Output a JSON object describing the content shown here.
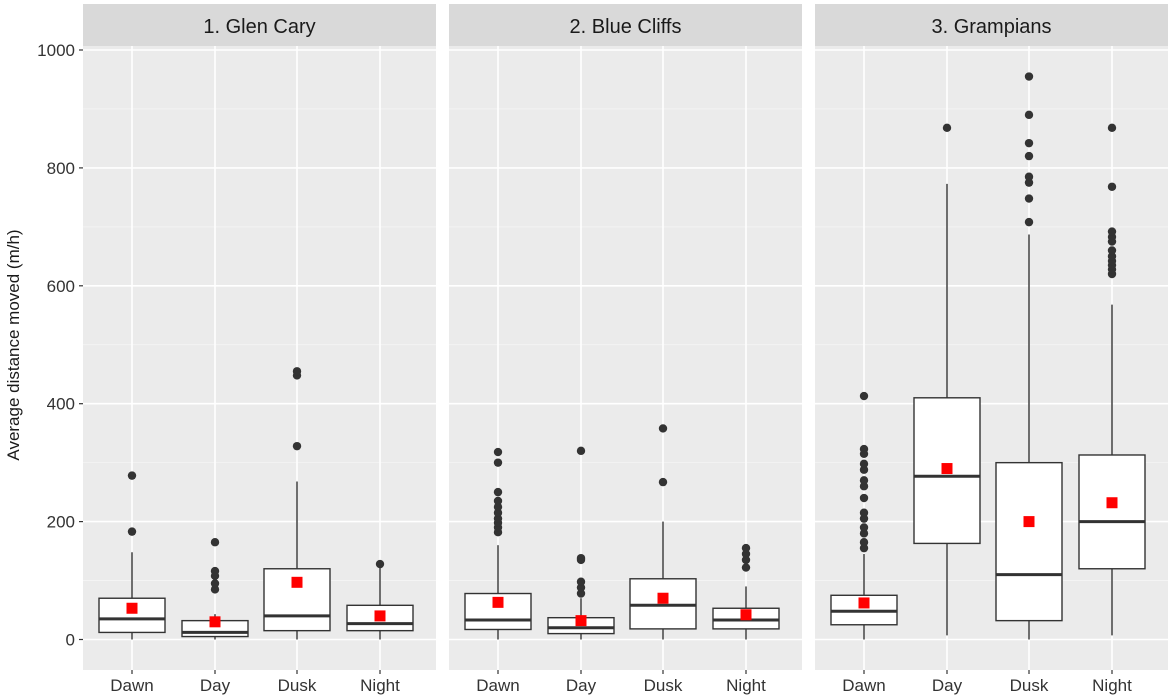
{
  "chart_data": {
    "type": "boxplot",
    "ylabel": "Average distance moved (m/h)",
    "xlabel": "",
    "ylim": [
      0,
      1000
    ],
    "yticks": [
      0,
      200,
      400,
      600,
      800,
      1000
    ],
    "categories": [
      "Dawn",
      "Day",
      "Dusk",
      "Night"
    ],
    "grid": true,
    "mean_marker_color": "#ff0000",
    "panel_background": "#ebebeb",
    "strip_background": "#d9d9d9",
    "panels": [
      {
        "label": "1. Glen Cary",
        "boxes": [
          {
            "category": "Dawn",
            "whisker_low": 0,
            "q1": 12,
            "median": 35,
            "q3": 70,
            "whisker_high": 148,
            "mean": 53,
            "outliers": [
              183,
              278
            ]
          },
          {
            "category": "Day",
            "whisker_low": 0,
            "q1": 5,
            "median": 12,
            "q3": 32,
            "whisker_high": 43,
            "mean": 30,
            "outliers": [
              85,
              95,
              108,
              116,
              165
            ]
          },
          {
            "category": "Dusk",
            "whisker_low": 0,
            "q1": 15,
            "median": 40,
            "q3": 120,
            "whisker_high": 268,
            "mean": 97,
            "outliers": [
              328,
              448,
              455
            ]
          },
          {
            "category": "Night",
            "whisker_low": 0,
            "q1": 15,
            "median": 27,
            "q3": 58,
            "whisker_high": 127,
            "mean": 40,
            "outliers": [
              128
            ]
          }
        ]
      },
      {
        "label": "2. Blue Cliffs",
        "boxes": [
          {
            "category": "Dawn",
            "whisker_low": 0,
            "q1": 17,
            "median": 33,
            "q3": 78,
            "whisker_high": 160,
            "mean": 63,
            "outliers": [
              182,
              190,
              198,
              205,
              215,
              225,
              235,
              250,
              300,
              318
            ]
          },
          {
            "category": "Day",
            "whisker_low": 0,
            "q1": 10,
            "median": 20,
            "q3": 37,
            "whisker_high": 70,
            "mean": 32,
            "outliers": [
              78,
              88,
              98,
              135,
              138,
              320
            ]
          },
          {
            "category": "Dusk",
            "whisker_low": 0,
            "q1": 18,
            "median": 58,
            "q3": 103,
            "whisker_high": 200,
            "mean": 70,
            "outliers": [
              267,
              358
            ]
          },
          {
            "category": "Night",
            "whisker_low": 0,
            "q1": 18,
            "median": 33,
            "q3": 53,
            "whisker_high": 90,
            "mean": 42,
            "outliers": [
              122,
              135,
              145,
              155
            ]
          }
        ]
      },
      {
        "label": "3. Grampians",
        "boxes": [
          {
            "category": "Dawn",
            "whisker_low": 0,
            "q1": 25,
            "median": 48,
            "q3": 75,
            "whisker_high": 145,
            "mean": 62,
            "outliers": [
              155,
              165,
              180,
              190,
              205,
              215,
              240,
              260,
              270,
              288,
              298,
              315,
              323,
              413
            ]
          },
          {
            "category": "Day",
            "whisker_low": 7,
            "q1": 163,
            "median": 277,
            "q3": 410,
            "whisker_high": 773,
            "mean": 290,
            "outliers": [
              868
            ]
          },
          {
            "category": "Dusk",
            "whisker_low": 0,
            "q1": 32,
            "median": 110,
            "q3": 300,
            "whisker_high": 687,
            "mean": 200,
            "outliers": [
              708,
              748,
              775,
              785,
              820,
              842,
              890,
              955
            ]
          },
          {
            "category": "Night",
            "whisker_low": 7,
            "q1": 120,
            "median": 200,
            "q3": 313,
            "whisker_high": 568,
            "mean": 232,
            "outliers": [
              620,
              628,
              635,
              642,
              650,
              660,
              675,
              683,
              692,
              768,
              868
            ]
          }
        ]
      }
    ]
  }
}
